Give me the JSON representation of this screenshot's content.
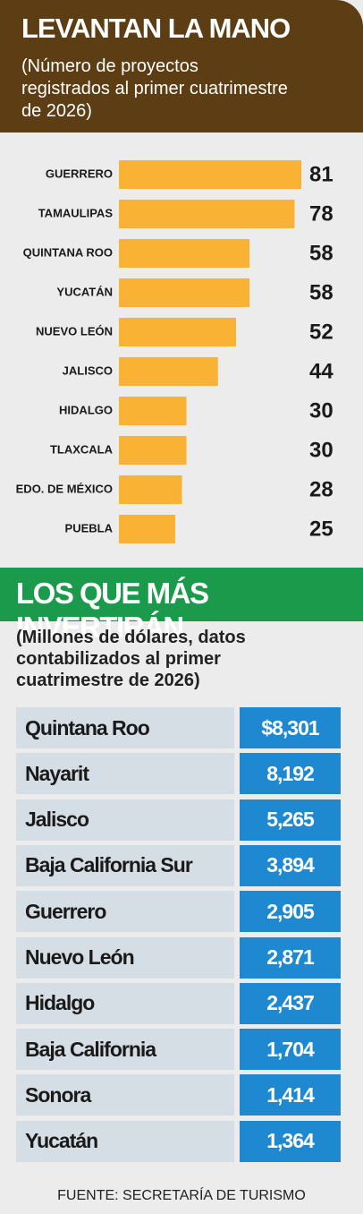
{
  "chart_data": {
    "type": "bar",
    "orientation": "horizontal",
    "title": "LEVANTAN LA MANO",
    "subtitle": "(Número de proyectos registrados al primer cuatrimestre de 2026)",
    "categories": [
      "GUERRERO",
      "TAMAULIPAS",
      "QUINTANA ROO",
      "YUCATÁN",
      "NUEVO LEÓN",
      "JALISCO",
      "HIDALGO",
      "TLAXCALA",
      "EDO. DE MÉXICO",
      "PUEBLA"
    ],
    "values": [
      81,
      78,
      58,
      58,
      52,
      44,
      30,
      30,
      28,
      25
    ],
    "color": "#f9b233"
  },
  "table": {
    "title": "LOS QUE MÁS INVERTIRÁN",
    "subtitle": "(Millones de dólares, datos contabilizados al primer cuatrimestre de 2026)",
    "rows": [
      [
        "Quintana Roo",
        "$8,301"
      ],
      [
        "Nayarit",
        "8,192"
      ],
      [
        "Jalisco",
        "5,265"
      ],
      [
        "Baja California Sur",
        "3,894"
      ],
      [
        "Guerrero",
        "2,905"
      ],
      [
        "Nuevo León",
        "2,871"
      ],
      [
        "Hidalgo",
        "2,437"
      ],
      [
        "Baja California",
        "1,704"
      ],
      [
        "Sonora",
        "1,414"
      ],
      [
        "Yucatán",
        "1,364"
      ]
    ]
  },
  "source": "FUENTE: SECRETARÍA DE TURISMO"
}
